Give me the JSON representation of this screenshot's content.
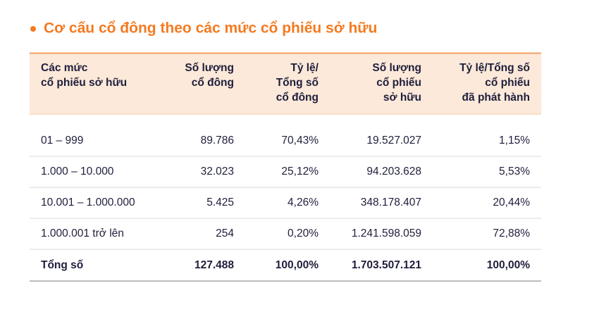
{
  "title": "Cơ cấu cổ đông theo các mức cổ phiếu sở hữu",
  "table": {
    "headers": [
      [
        "Các mức",
        "cổ phiếu sở hữu"
      ],
      [
        "Số lượng",
        "cổ đông"
      ],
      [
        "Tỷ lệ/",
        "Tổng số",
        "cổ đông"
      ],
      [
        "Số lượng",
        "cổ phiếu",
        "sở hữu"
      ],
      [
        "Tỷ lệ/Tổng số",
        "cổ phiếu",
        "đã phát hành"
      ]
    ],
    "rows": [
      [
        "01 – 999",
        "89.786",
        "70,43%",
        "19.527.027",
        "1,15%"
      ],
      [
        "1.000 – 10.000",
        "32.023",
        "25,12%",
        "94.203.628",
        "5,53%"
      ],
      [
        "10.001 – 1.000.000",
        "5.425",
        "4,26%",
        "348.178.407",
        "20,44%"
      ],
      [
        "1.000.001 trở lên",
        "254",
        "0,20%",
        "1.241.598.059",
        "72,88%"
      ]
    ],
    "total": [
      "Tổng số",
      "127.488",
      "100,00%",
      "1.703.507.121",
      "100,00%"
    ]
  }
}
